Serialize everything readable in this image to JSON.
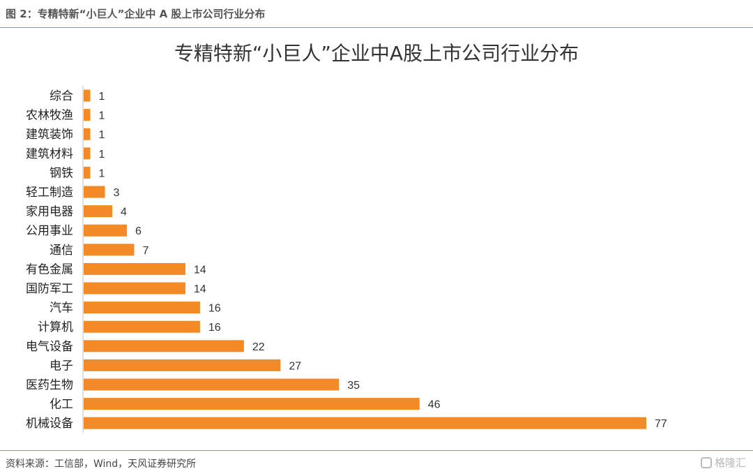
{
  "header": {
    "caption": "图 2：专精特新“小巨人”企业中 A 股上市公司行业分布"
  },
  "footer": {
    "source": "资料来源：工信部，Wind，天风证券研究所",
    "watermark": "格隆汇"
  },
  "colors": {
    "bar": "#f28a25",
    "rule": "#e8822d",
    "axis": "#bfbfbf"
  },
  "chart_data": {
    "type": "bar",
    "orientation": "horizontal",
    "title": "专精特新“小巨人”企业中A股上市公司行业分布",
    "categories": [
      "综合",
      "农林牧渔",
      "建筑装饰",
      "建筑材料",
      "钢铁",
      "轻工制造",
      "家用电器",
      "公用事业",
      "通信",
      "有色金属",
      "国防军工",
      "汽车",
      "计算机",
      "电气设备",
      "电子",
      "医药生物",
      "化工",
      "机械设备"
    ],
    "values": [
      1,
      1,
      1,
      1,
      1,
      3,
      4,
      6,
      7,
      14,
      14,
      16,
      16,
      22,
      27,
      35,
      46,
      77
    ],
    "data_labels": true,
    "xlim": [
      0,
      77
    ],
    "grid": false,
    "legend": "none"
  }
}
